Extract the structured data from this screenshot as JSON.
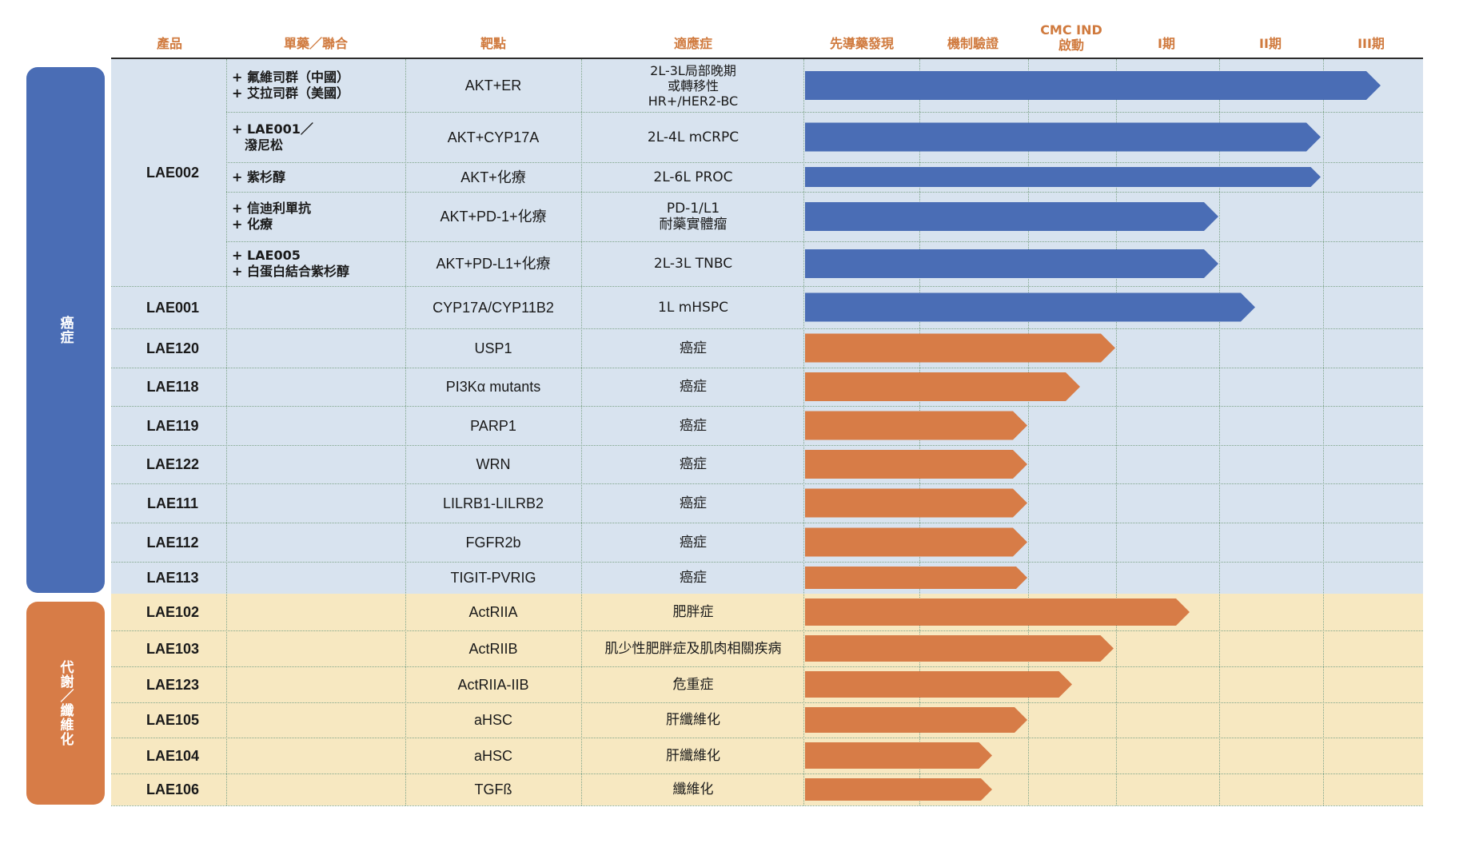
{
  "headers": {
    "product": "產品",
    "mono_combo": "單藥／聯合",
    "target": "靶點",
    "indication": "適應症",
    "stages": [
      {
        "label": "先導藥發現"
      },
      {
        "label": "機制驗證"
      },
      {
        "label": "CMC IND\n啟動"
      },
      {
        "label": "I期"
      },
      {
        "label": "II期"
      },
      {
        "label": "III期"
      }
    ]
  },
  "groups": {
    "oncology": {
      "label": "癌症"
    },
    "metabolic": {
      "label": "代謝／纖維化"
    }
  },
  "colors": {
    "oncology_bar": "#4a6db5",
    "metabolic_bar": "#d77c47",
    "oncology_band": "#d8e3ef",
    "metabolic_band": "#f7e8c1",
    "header_text": "#d07a3e"
  },
  "lae002": {
    "product": "LAE002"
  },
  "rows": [
    {
      "product": "",
      "combo": [
        "+ 氟維司群（中國）",
        "+ 艾拉司群（美國）"
      ],
      "target": "AKT+ER",
      "indication": [
        "2L-3L局部晚期",
        "或轉移性",
        "HR+/HER2-BC"
      ],
      "group": "oncology",
      "progress": "III期"
    },
    {
      "product": "",
      "combo": [
        "+ LAE001／",
        "   潑尼松"
      ],
      "target": "AKT+CYP17A",
      "indication": [
        "2L-4L mCRPC"
      ],
      "group": "oncology",
      "progress": "III期 (start)"
    },
    {
      "product": "",
      "combo": [
        "+ 紫杉醇"
      ],
      "target": "AKT+化療",
      "indication": [
        "2L-6L PROC"
      ],
      "group": "oncology",
      "progress": "III期 (start)"
    },
    {
      "product": "",
      "combo": [
        "+ 信迪利單抗",
        "+ 化療"
      ],
      "target": "AKT+PD-1+化療",
      "indication": [
        "PD-1/L1",
        "耐藥實體瘤"
      ],
      "group": "oncology",
      "progress": "II期"
    },
    {
      "product": "",
      "combo": [
        "+ LAE005",
        "+ 白蛋白結合紫杉醇"
      ],
      "target": "AKT+PD-L1+化療",
      "indication": [
        "2L-3L TNBC"
      ],
      "group": "oncology",
      "progress": "II期"
    },
    {
      "product": "LAE001",
      "combo": [],
      "target": "CYP17A/CYP11B2",
      "indication": [
        "1L mHSPC"
      ],
      "group": "oncology",
      "progress": "II期"
    },
    {
      "product": "LAE120",
      "combo": [],
      "target": "USP1",
      "indication": [
        "癌症"
      ],
      "group": "oncology",
      "progress": "CMC IND 啟動"
    },
    {
      "product": "LAE118",
      "combo": [],
      "target": "PI3Kα mutants",
      "indication": [
        "癌症"
      ],
      "group": "oncology",
      "progress": "CMC IND 啟動"
    },
    {
      "product": "LAE119",
      "combo": [],
      "target": "PARP1",
      "indication": [
        "癌症"
      ],
      "group": "oncology",
      "progress": "機制驗證"
    },
    {
      "product": "LAE122",
      "combo": [],
      "target": "WRN",
      "indication": [
        "癌症"
      ],
      "group": "oncology",
      "progress": "機制驗證"
    },
    {
      "product": "LAE111",
      "combo": [],
      "target": "LILRB1-LILRB2",
      "indication": [
        "癌症"
      ],
      "group": "oncology",
      "progress": "機制驗證"
    },
    {
      "product": "LAE112",
      "combo": [],
      "target": "FGFR2b",
      "indication": [
        "癌症"
      ],
      "group": "oncology",
      "progress": "機制驗證"
    },
    {
      "product": "LAE113",
      "combo": [],
      "target": "TIGIT-PVRIG",
      "indication": [
        "癌症"
      ],
      "group": "oncology",
      "progress": "機制驗證"
    },
    {
      "product": "LAE102",
      "combo": [],
      "target": "ActRIIA",
      "indication": [
        "肥胖症"
      ],
      "group": "metabolic",
      "progress": "I期"
    },
    {
      "product": "LAE103",
      "combo": [],
      "target": "ActRIIB",
      "indication": [
        "肌少性肥胖症及肌肉相關疾病"
      ],
      "group": "metabolic",
      "progress": "CMC IND 啟動"
    },
    {
      "product": "LAE123",
      "combo": [],
      "target": "ActRIIA-IIB",
      "indication": [
        "危重症"
      ],
      "group": "metabolic",
      "progress": "CMC IND 啟動"
    },
    {
      "product": "LAE105",
      "combo": [],
      "target": "aHSC",
      "indication": [
        "肝纖維化"
      ],
      "group": "metabolic",
      "progress": "機制驗證"
    },
    {
      "product": "LAE104",
      "combo": [],
      "target": "aHSC",
      "indication": [
        "肝纖維化"
      ],
      "group": "metabolic",
      "progress": "機制驗證"
    },
    {
      "product": "LAE106",
      "combo": [],
      "target": "TGFß",
      "indication": [
        "纖維化"
      ],
      "group": "metabolic",
      "progress": "機制驗證"
    }
  ]
}
